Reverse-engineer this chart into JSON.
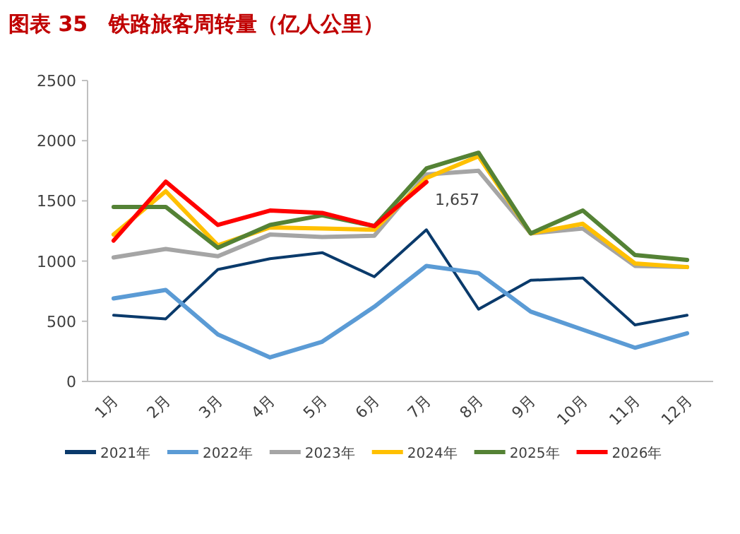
{
  "chart_data": {
    "type": "line",
    "title": "图表 35　铁路旅客周转量（亿人公里）",
    "categories": [
      "1月",
      "2月",
      "3月",
      "4月",
      "5月",
      "6月",
      "7月",
      "8月",
      "9月",
      "10月",
      "11月",
      "12月"
    ],
    "ylim": [
      0,
      2500
    ],
    "yticks": [
      0,
      500,
      1000,
      1500,
      2000,
      2500
    ],
    "grid": false,
    "legend": "bottom",
    "marker": "none",
    "line_style": "solid",
    "series": [
      {
        "name": "2021年",
        "color": "#0a3a6b",
        "values": [
          550,
          520,
          930,
          1020,
          1070,
          870,
          1260,
          600,
          840,
          860,
          470,
          550
        ]
      },
      {
        "name": "2022年",
        "color": "#5b9bd5",
        "values": [
          690,
          760,
          390,
          200,
          330,
          620,
          960,
          900,
          580,
          430,
          280,
          400
        ]
      },
      {
        "name": "2023年",
        "color": "#a5a5a5",
        "values": [
          1030,
          1100,
          1040,
          1220,
          1200,
          1210,
          1720,
          1750,
          1230,
          1270,
          960,
          950
        ]
      },
      {
        "name": "2024年",
        "color": "#ffc000",
        "values": [
          1220,
          1580,
          1130,
          1280,
          1270,
          1260,
          1690,
          1870,
          1230,
          1310,
          980,
          950
        ]
      },
      {
        "name": "2025年",
        "color": "#548235",
        "values": [
          1450,
          1450,
          1110,
          1300,
          1380,
          1290,
          1770,
          1900,
          1230,
          1420,
          1050,
          1010
        ]
      },
      {
        "name": "2026年",
        "color": "#ff0000",
        "values": [
          1170,
          1660,
          1300,
          1420,
          1400,
          1290,
          1657,
          null,
          null,
          null,
          null,
          null
        ],
        "value_labels": [
          null,
          null,
          null,
          null,
          null,
          null,
          "1,657",
          null,
          null,
          null,
          null,
          null
        ]
      }
    ]
  }
}
